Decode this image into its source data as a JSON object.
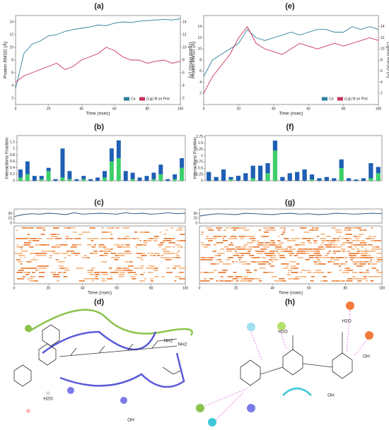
{
  "chart_data": [
    {
      "type": "line",
      "title": "(a)",
      "xlabel": "Time (nsec)",
      "ylabel": "Protein RMSD (Å)",
      "y2label": "Ligand RMSD (Å)",
      "x": [
        0,
        5,
        10,
        15,
        20,
        25,
        30,
        35,
        40,
        45,
        50,
        55,
        60,
        65,
        70,
        75,
        80,
        85,
        90,
        95,
        100
      ],
      "xlim": [
        0,
        100
      ],
      "xticks": [
        0,
        20,
        40,
        60,
        80,
        100
      ],
      "ylim": [
        1,
        15
      ],
      "yticks": [
        2,
        4,
        6,
        8,
        10,
        12,
        14
      ],
      "y2lim": [
        1,
        15
      ],
      "y2ticks": [
        2,
        4,
        6,
        8,
        10,
        12,
        14
      ],
      "series": [
        {
          "name": "Cα",
          "color": "#2f7d9c",
          "values": [
            3.5,
            9,
            10.5,
            11,
            11.8,
            12,
            12.5,
            12.8,
            13,
            13.2,
            13.5,
            13.4,
            13.8,
            14,
            13.9,
            14.1,
            14.2,
            14.3,
            14.4,
            14.3,
            14.5
          ]
        },
        {
          "name": "(Lig) fit on Prot",
          "color": "#c8325a",
          "axis": "y2",
          "values": [
            4.5,
            5.5,
            6,
            6.5,
            7,
            7.5,
            6.5,
            7,
            8,
            8.5,
            9,
            10,
            9.5,
            8.5,
            8,
            8,
            7.5,
            7.8,
            8,
            7.5,
            7.8
          ]
        }
      ]
    },
    {
      "type": "bar",
      "title": "(b)",
      "ylabel": "Interactions Fraction",
      "categories": [
        null,
        null,
        null,
        null,
        null,
        null,
        null,
        null,
        null,
        null,
        null,
        null,
        null,
        null,
        null,
        null,
        null,
        null,
        null,
        null,
        null,
        null,
        null,
        null
      ],
      "ylim": [
        0,
        1.4
      ],
      "yticks": [
        0,
        0.2,
        0.4,
        0.6,
        0.8,
        1.0,
        1.2
      ],
      "series": [
        {
          "color": "#3ccf6a",
          "values": [
            0.1,
            0.2,
            0,
            0.05,
            0.3,
            0,
            0.1,
            0.05,
            0,
            0.05,
            0,
            0,
            0.1,
            0.6,
            0.7,
            0,
            0.05,
            0,
            0,
            0.05,
            0.2,
            0,
            0.05,
            0.4
          ]
        },
        {
          "color": "#1f5fb4",
          "values": [
            0.25,
            0.4,
            0.15,
            0.1,
            0.1,
            0.05,
            0.9,
            0.25,
            0.05,
            0.1,
            0.05,
            0.1,
            0.2,
            0.4,
            0.55,
            0.3,
            0.2,
            0.1,
            0.15,
            0.2,
            0.3,
            0.05,
            0.15,
            0.3
          ]
        }
      ]
    },
    {
      "type": "line",
      "title": "(c)",
      "xlabel": "Time (nsec)",
      "x": [
        0,
        5,
        10,
        15,
        20,
        25,
        30,
        35,
        40,
        45,
        50,
        55,
        60,
        65,
        70,
        75,
        80,
        85,
        90,
        95,
        100
      ],
      "xlim": [
        0,
        100
      ],
      "xticks": [
        0,
        20,
        40,
        60,
        80,
        100
      ],
      "ylim": [
        0,
        30
      ],
      "yticks": [
        0,
        10,
        20
      ],
      "series": [
        {
          "color": "#1f4e79",
          "values": [
            14,
            18,
            20,
            19,
            21,
            20,
            18,
            22,
            19,
            20,
            21,
            20,
            19,
            22,
            20,
            21,
            19,
            20,
            22,
            20,
            21
          ]
        }
      ]
    },
    {
      "type": "line",
      "title": "(e)",
      "xlabel": "Time (nsec)",
      "ylabel": "Protein RMSD (Å)",
      "y2label": "Ligand RMSD (Å)",
      "x": [
        0,
        5,
        10,
        15,
        20,
        25,
        30,
        35,
        40,
        45,
        50,
        55,
        60,
        65,
        70,
        75,
        80,
        85,
        90,
        95,
        100
      ],
      "xlim": [
        0,
        100
      ],
      "xticks": [
        0,
        20,
        40,
        60,
        80,
        100
      ],
      "ylim": [
        0,
        16
      ],
      "yticks": [
        2,
        4,
        6,
        8,
        10,
        12,
        14
      ],
      "y2lim": [
        0,
        16
      ],
      "y2ticks": [
        2,
        4,
        6,
        8,
        10,
        12,
        14
      ],
      "series": [
        {
          "name": "Cα",
          "color": "#2f7d9c",
          "values": [
            5,
            8,
            9,
            10,
            11,
            13.5,
            12,
            11.5,
            12,
            12.5,
            13,
            12.5,
            13,
            13.5,
            13.5,
            13,
            13,
            14,
            13.5,
            14,
            13.5
          ]
        },
        {
          "name": "(Lig) fit on Prot",
          "color": "#c8325a",
          "values": [
            2,
            5,
            7,
            9,
            12,
            14,
            11,
            10,
            9.5,
            9,
            10,
            11,
            10.5,
            10,
            10.5,
            11,
            10.5,
            11,
            11.5,
            12,
            11.5
          ],
          "axis": "y2"
        }
      ]
    },
    {
      "type": "bar",
      "title": "(f)",
      "ylabel": "Interactions Fraction",
      "categories": [
        null,
        null,
        null,
        null,
        null,
        null,
        null,
        null,
        null,
        null,
        null,
        null,
        null,
        null,
        null,
        null,
        null,
        null,
        null,
        null,
        null,
        null,
        null,
        null
      ],
      "ylim": [
        0,
        1.8
      ],
      "yticks": [
        0,
        0.25,
        0.5,
        0.75,
        1.0,
        1.25,
        1.5,
        1.75
      ],
      "series": [
        {
          "color": "#3ccf6a",
          "values": [
            0,
            0,
            0,
            0.05,
            0,
            0,
            0.1,
            0,
            0.3,
            1.2,
            0,
            0,
            0,
            0,
            0.05,
            0,
            0,
            0,
            0.5,
            0,
            0,
            0,
            0.1,
            0.3
          ]
        },
        {
          "color": "#1f5fb4",
          "values": [
            0.35,
            0.15,
            0.45,
            0.1,
            0.2,
            0.3,
            0.5,
            0.6,
            0.4,
            0.4,
            0.15,
            0.3,
            0.35,
            0.45,
            0.2,
            0.1,
            0.15,
            0.1,
            0.35,
            0.1,
            0.05,
            0.1,
            0.6,
            0.25
          ]
        }
      ]
    },
    {
      "type": "line",
      "title": "(g)",
      "xlabel": "Time (nsec)",
      "x": [
        0,
        5,
        10,
        15,
        20,
        25,
        30,
        35,
        40,
        45,
        50,
        55,
        60,
        65,
        70,
        75,
        80,
        85,
        90,
        95,
        100
      ],
      "xlim": [
        0,
        100
      ],
      "xticks": [
        0,
        20,
        40,
        60,
        80,
        100
      ],
      "ylim": [
        0,
        30
      ],
      "yticks": [
        0,
        10,
        20
      ],
      "series": [
        {
          "color": "#1f4e79",
          "values": [
            15,
            18,
            20,
            19,
            18,
            21,
            20,
            19,
            18,
            20,
            21,
            19,
            20,
            18,
            19,
            21,
            20,
            19,
            20,
            21,
            20
          ]
        }
      ]
    }
  ],
  "diagrams": [
    {
      "title": "(d)",
      "labels": [
        "NH2",
        "NH2",
        "OH",
        "H2O"
      ]
    },
    {
      "title": "(h)",
      "labels": [
        "OH",
        "OH",
        "H2O",
        "H2O"
      ]
    }
  ]
}
